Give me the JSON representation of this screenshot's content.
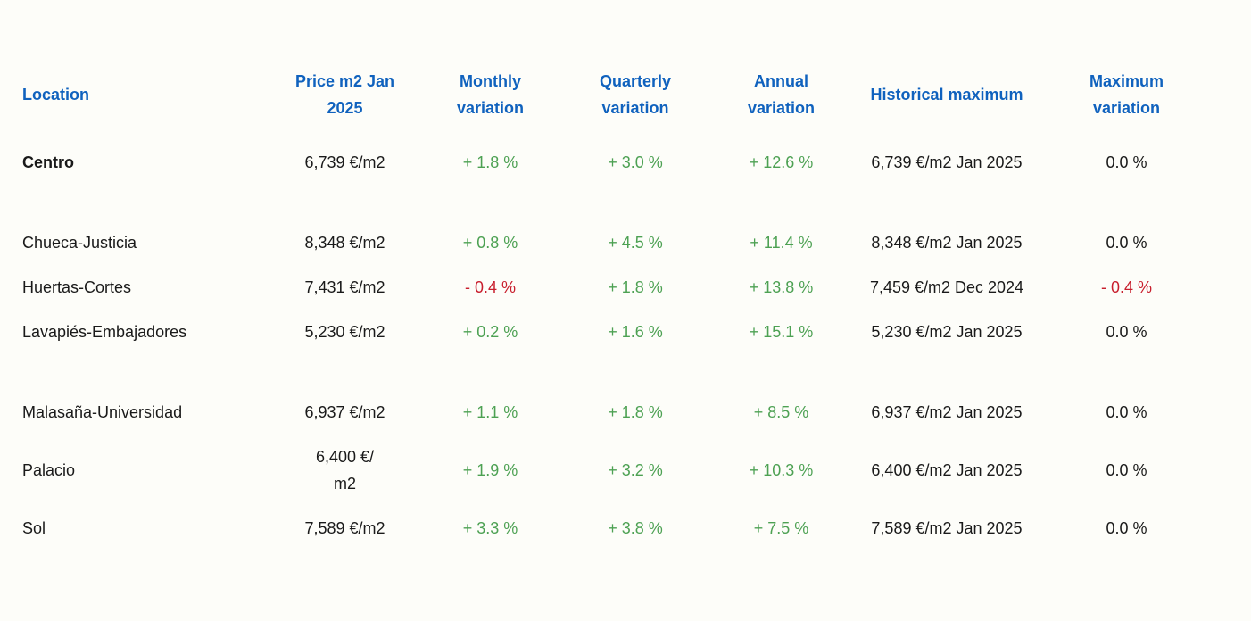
{
  "colors": {
    "header_blue": "#1062be",
    "positive_green": "#4da153",
    "negative_red": "#c81e2d",
    "text_black": "#1a1a1a",
    "background": "#fdfdf9"
  },
  "chart_data": {
    "type": "table",
    "columns": [
      "Location",
      "Price m2 Jan 2025",
      "Monthly variation",
      "Quarterly variation",
      "Annual variation",
      "Historical maximum",
      "Maximum variation"
    ],
    "rows": [
      {
        "location": "Centro",
        "location_style": "bold",
        "price": "6,739 €/m2",
        "monthly": "+ 1.8 %",
        "monthly_style": "pos",
        "quarterly": "+ 3.0 %",
        "quarterly_style": "pos",
        "annual": "+ 12.6 %",
        "annual_style": "pos",
        "historical": "6,739 €/m2 Jan 2025",
        "maximum": "0.0 %",
        "maximum_style": "zero"
      },
      {
        "location": "Chueca-Justicia",
        "price": "8,348 €/m2",
        "monthly": "+ 0.8 %",
        "monthly_style": "pos",
        "quarterly": "+ 4.5 %",
        "quarterly_style": "pos",
        "annual": "+ 11.4 %",
        "annual_style": "pos",
        "historical": "8,348 €/m2 Jan 2025",
        "maximum": "0.0 %",
        "maximum_style": "zero"
      },
      {
        "location": "Huertas-Cortes",
        "price": "7,431 €/m2",
        "monthly": "- 0.4 %",
        "monthly_style": "neg",
        "quarterly": "+ 1.8 %",
        "quarterly_style": "pos",
        "annual": "+ 13.8 %",
        "annual_style": "pos",
        "historical": "7,459 €/m2 Dec 2024",
        "maximum": "- 0.4 %",
        "maximum_style": "neg"
      },
      {
        "location": "Lavapiés-Embajadores",
        "price": "5,230 €/m2",
        "monthly": "+ 0.2 %",
        "monthly_style": "pos",
        "quarterly": "+ 1.6 %",
        "quarterly_style": "pos",
        "annual": "+ 15.1 %",
        "annual_style": "pos",
        "historical": "5,230 €/m2 Jan 2025",
        "maximum": "0.0 %",
        "maximum_style": "zero"
      },
      {
        "location": "Malasaña-Universidad",
        "price": "6,937 €/m2",
        "monthly": "+ 1.1 %",
        "monthly_style": "pos",
        "quarterly": "+ 1.8 %",
        "quarterly_style": "pos",
        "annual": "+ 8.5 %",
        "annual_style": "pos",
        "historical": "6,937 €/m2 Jan 2025",
        "maximum": "0.0 %",
        "maximum_style": "zero"
      },
      {
        "location": "Palacio",
        "price": "6,400 €/\nm2",
        "monthly": "+ 1.9 %",
        "monthly_style": "pos",
        "quarterly": "+ 3.2 %",
        "quarterly_style": "pos",
        "annual": "+ 10.3 %",
        "annual_style": "pos",
        "historical": "6,400 €/m2 Jan 2025",
        "maximum": "0.0 %",
        "maximum_style": "zero"
      },
      {
        "location": "Sol",
        "price": "7,589 €/m2",
        "monthly": "+ 3.3 %",
        "monthly_style": "pos",
        "quarterly": "+ 3.8 %",
        "quarterly_style": "pos",
        "annual": "+ 7.5 %",
        "annual_style": "pos",
        "historical": "7,589 €/m2 Jan 2025",
        "maximum": "0.0 %",
        "maximum_style": "zero"
      }
    ]
  }
}
